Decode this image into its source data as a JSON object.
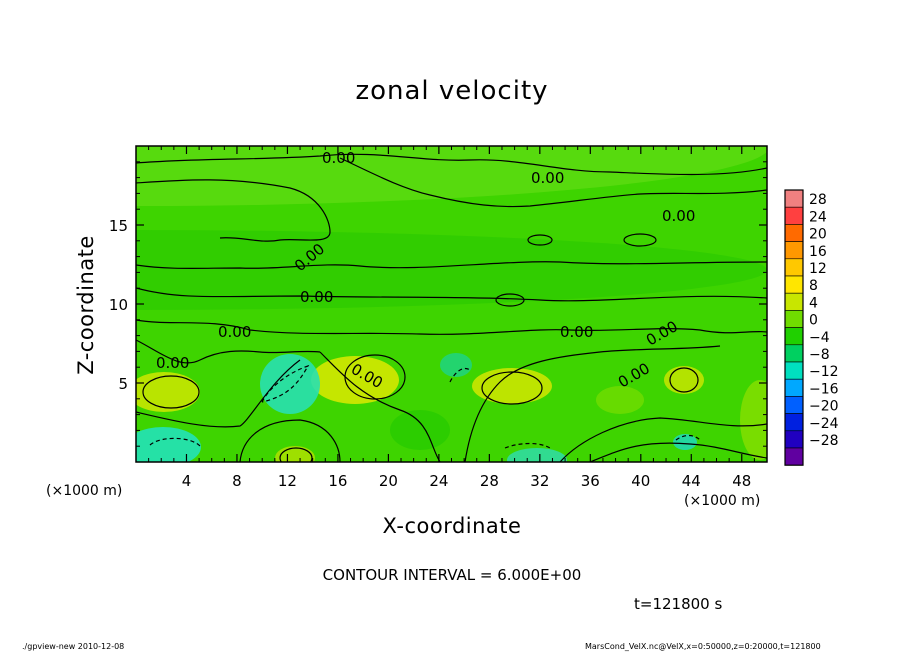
{
  "chart_data": {
    "type": "heatmap",
    "title": "zonal velocity",
    "xlabel": "X-coordinate",
    "ylabel": "Z-coordinate",
    "x_unit_label": "(×1000 m)",
    "xlim": [
      0,
      50
    ],
    "ylim": [
      0,
      20
    ],
    "x_ticks": [
      "4",
      "8",
      "12",
      "16",
      "20",
      "24",
      "28",
      "32",
      "36",
      "40",
      "44",
      "48"
    ],
    "y_ticks": [
      "5",
      "10",
      "15"
    ],
    "colorbar": {
      "labels": [
        "28",
        "24",
        "20",
        "16",
        "12",
        "8",
        "4",
        "0",
        "−4",
        "−8",
        "−12",
        "−16",
        "−20",
        "−24",
        "−28"
      ],
      "colors": [
        "#f08080",
        "#ff4040",
        "#ff6a00",
        "#ff9800",
        "#ffc800",
        "#ffe600",
        "#c8e600",
        "#70dc00",
        "#20d000",
        "#00d060",
        "#00e0c0",
        "#00a8ff",
        "#0060ff",
        "#0020e0",
        "#2000c0",
        "#6000a0"
      ]
    },
    "contour_labels": [
      "0.00",
      "0.00",
      "0.00",
      "0.00",
      "0.00",
      "0.00",
      "0.00",
      "0.00",
      "0.00",
      "0.00",
      "0.00"
    ],
    "contour_interval": "CONTOUR INTERVAL = 6.000E+00",
    "time": "t=121800 s"
  },
  "footer": {
    "left": "./gpview-new  2010-12-08",
    "right": "MarsCond_VelX.nc@VelX,x=0:50000,z=0:20000,t=121800"
  }
}
